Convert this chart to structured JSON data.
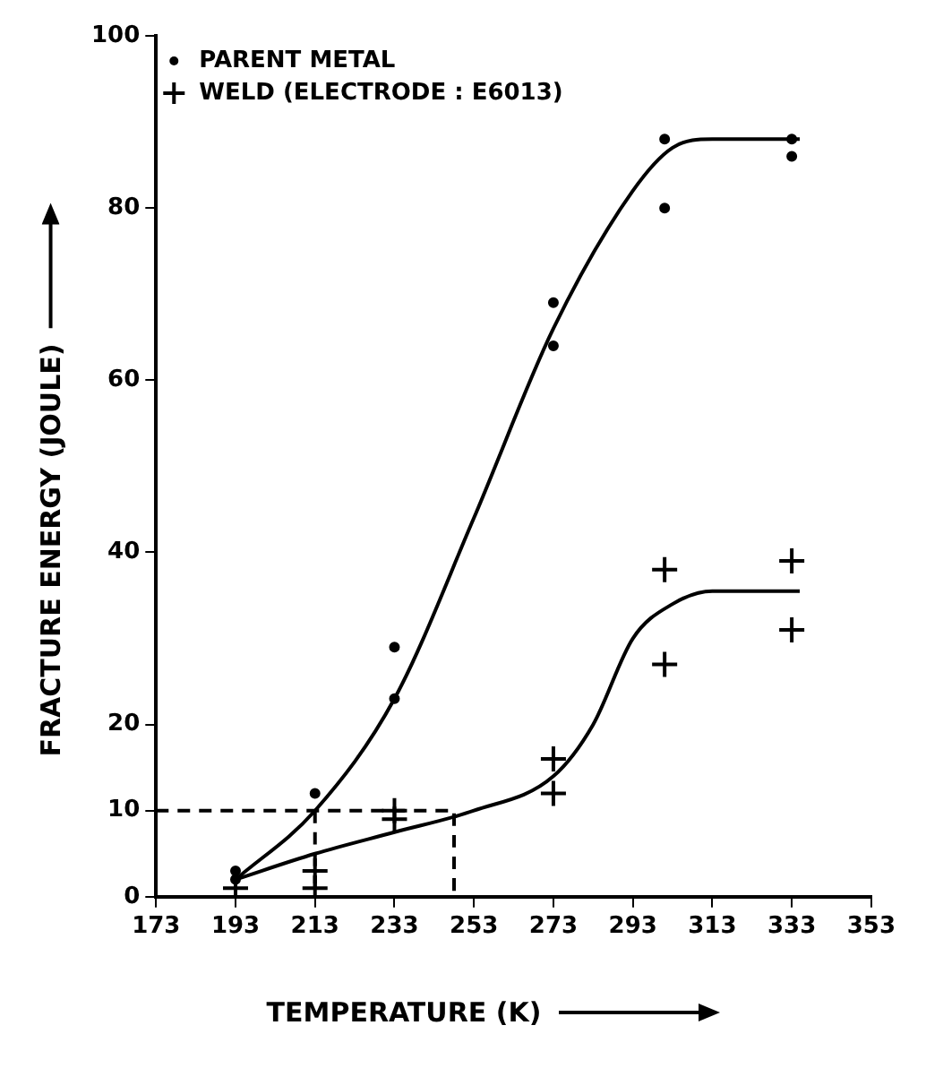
{
  "chart_data": {
    "type": "scatter",
    "xlabel": "TEMPERATURE (K)",
    "ylabel": "FRACTURE ENERGY (JOULE)",
    "xlim": [
      173,
      353
    ],
    "xticks": [
      173,
      193,
      213,
      233,
      253,
      273,
      293,
      313,
      333,
      353
    ],
    "ylim": [
      0,
      100
    ],
    "yticks": [
      0,
      10,
      20,
      40,
      60,
      80,
      100
    ],
    "grid": false,
    "legend": "top left",
    "series": [
      {
        "name": "PARENT METAL",
        "type": "scatter",
        "marker": "circle",
        "color": "#000000",
        "x": [
          193,
          193,
          213,
          233,
          233,
          273,
          273,
          301,
          301,
          333,
          333
        ],
        "values": [
          2,
          3,
          12,
          29,
          23,
          69,
          64,
          88,
          80,
          88,
          86
        ]
      },
      {
        "name": "WELD (ELECTRODE : E6013)",
        "type": "scatter",
        "marker": "cross",
        "color": "#000000",
        "x": [
          193,
          213,
          213,
          233,
          233,
          273,
          273,
          301,
          301,
          333,
          333
        ],
        "values": [
          1,
          3,
          1,
          10,
          9,
          16,
          12,
          38,
          27,
          39,
          31
        ]
      },
      {
        "type": "line",
        "marker": "none",
        "line_style": "solid",
        "color": "#000000",
        "x": [
          193,
          213,
          233,
          253,
          273,
          293,
          303,
          313,
          335
        ],
        "values": [
          2,
          10,
          23,
          44,
          66,
          82,
          87,
          88,
          88
        ]
      },
      {
        "type": "line",
        "marker": "none",
        "line_style": "solid",
        "color": "#000000",
        "x": [
          193,
          213,
          233,
          253,
          273,
          283,
          293,
          303,
          313,
          335
        ],
        "values": [
          2,
          5,
          7.5,
          10,
          14,
          20,
          30,
          34,
          35.5,
          35.5
        ]
      },
      {
        "type": "line",
        "marker": "none",
        "line_style": "dashed",
        "color": "#000000",
        "x": [
          173,
          248,
          248
        ],
        "values": [
          10,
          10,
          0
        ]
      },
      {
        "type": "line",
        "marker": "none",
        "line_style": "dashed",
        "color": "#000000",
        "x": [
          213,
          213
        ],
        "values": [
          10,
          0
        ]
      }
    ]
  }
}
